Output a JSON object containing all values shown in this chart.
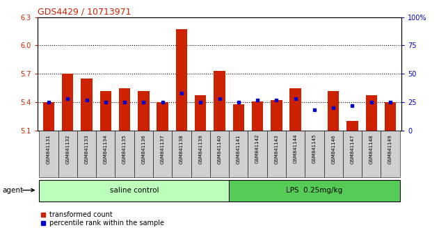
{
  "title": "GDS4429 / 10713971",
  "samples": [
    "GSM841131",
    "GSM841132",
    "GSM841133",
    "GSM841134",
    "GSM841135",
    "GSM841136",
    "GSM841137",
    "GSM841138",
    "GSM841139",
    "GSM841140",
    "GSM841141",
    "GSM841142",
    "GSM841143",
    "GSM841144",
    "GSM841145",
    "GSM841146",
    "GSM841147",
    "GSM841148",
    "GSM841149"
  ],
  "transformed_counts": [
    5.4,
    5.7,
    5.65,
    5.52,
    5.55,
    5.52,
    5.4,
    6.17,
    5.47,
    5.73,
    5.38,
    5.41,
    5.42,
    5.55,
    5.1,
    5.52,
    5.2,
    5.47,
    5.4
  ],
  "percentile_ranks": [
    25,
    28,
    27,
    25,
    25,
    25,
    25,
    33,
    25,
    28,
    25,
    27,
    27,
    28,
    18,
    20,
    22,
    25,
    25
  ],
  "ylim_left": [
    5.1,
    6.3
  ],
  "ylim_right": [
    0,
    100
  ],
  "yticks_left": [
    5.1,
    5.4,
    5.7,
    6.0,
    6.3
  ],
  "yticks_right": [
    0,
    25,
    50,
    75,
    100
  ],
  "bar_color": "#cc2200",
  "dot_color": "#0000cc",
  "baseline": 5.1,
  "saline_count": 10,
  "lps_count": 9,
  "group1_label": "saline control",
  "group2_label": "LPS  0.25mg/kg",
  "group1_color": "#bbffbb",
  "group2_color": "#55cc55",
  "legend_bar": "transformed count",
  "legend_dot": "percentile rank within the sample",
  "left_axis_color": "#cc2200",
  "right_axis_color": "#0000cc",
  "title_color": "#cc2200",
  "bg_color": "#f0f0f0"
}
